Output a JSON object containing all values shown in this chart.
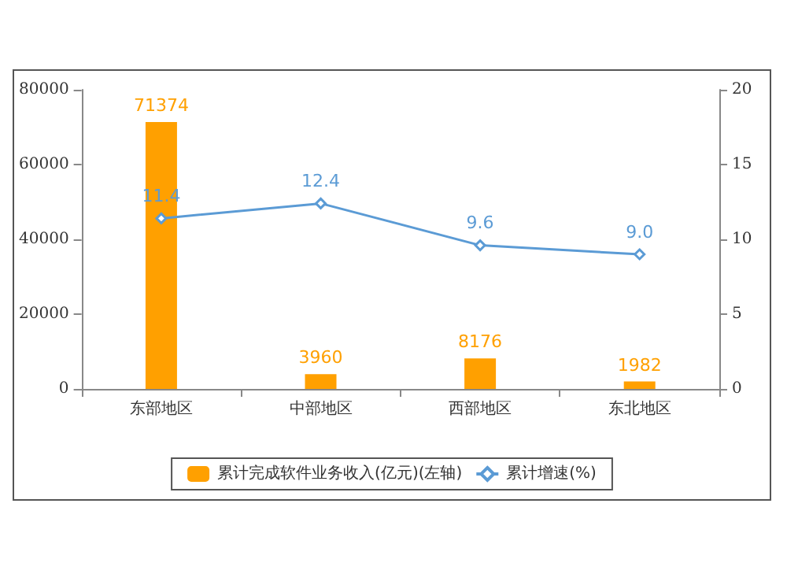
{
  "chart_data": {
    "type": "bar",
    "categories": [
      "东部地区",
      "中部地区",
      "西部地区",
      "东北地区"
    ],
    "series": [
      {
        "name": "累计完成软件业务收入(亿元)(左轴)",
        "color": "#ffa000",
        "values": [
          71374,
          3960,
          8176,
          1982
        ],
        "value_labels": [
          "71374",
          "3960",
          "8176",
          "1982"
        ]
      },
      {
        "name": "累计增速(%)",
        "type": "line",
        "axis": "y2",
        "color": "#5b9bd5",
        "values": [
          11.4,
          12.4,
          9.6,
          9.0
        ],
        "value_labels": [
          "11.4",
          "12.4",
          "9.6",
          "9.0"
        ],
        "marker": "diamond"
      }
    ],
    "ylim": [
      0,
      80000
    ],
    "yticks": [
      0,
      20000,
      40000,
      60000,
      80000
    ],
    "y2lim": [
      0,
      20
    ],
    "y2ticks": [
      0,
      5,
      10,
      15,
      20
    ],
    "legend": "bottom",
    "grid": false
  }
}
